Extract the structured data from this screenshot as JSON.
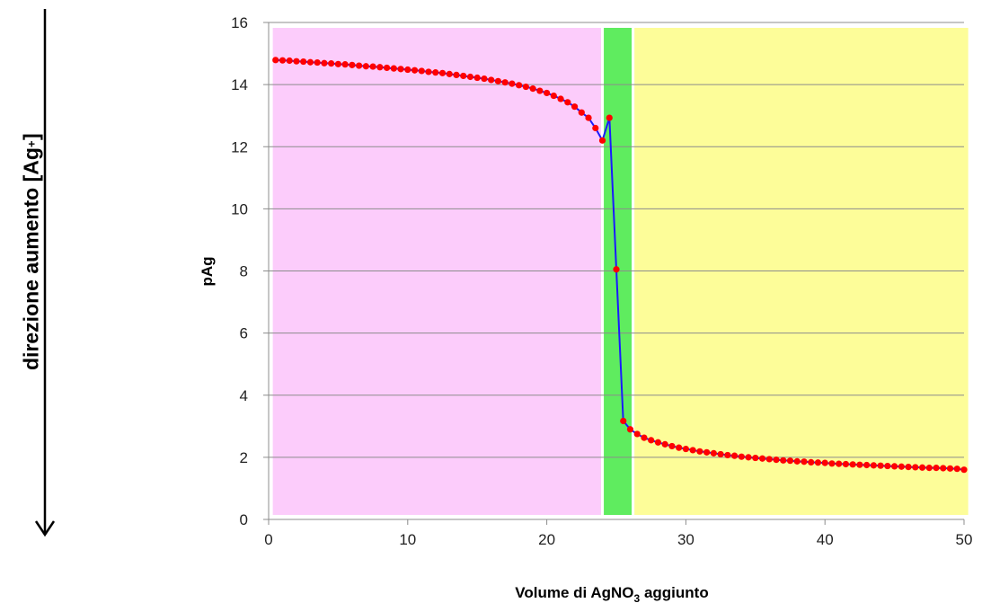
{
  "side_annotation": {
    "text": "direzione aumento [Ag",
    "superscript": "+",
    "close": "]"
  },
  "chart_data": {
    "type": "line",
    "title": "",
    "xlabel_parts": [
      "Volume di AgNO",
      "3",
      " aggiunto"
    ],
    "ylabel": "pAg",
    "xlim": [
      0,
      50
    ],
    "ylim": [
      0,
      16
    ],
    "x_ticks": [
      0,
      10,
      20,
      30,
      40,
      50
    ],
    "y_ticks": [
      0,
      2,
      4,
      6,
      8,
      10,
      12,
      14,
      16
    ],
    "grid": "horizontal",
    "line_color": "#1a1aff",
    "marker_color": "#ff0000",
    "regions": [
      {
        "x0": 0.3,
        "x1": 23.9,
        "color": "#fcccfb"
      },
      {
        "x0": 24.1,
        "x1": 26.1,
        "color": "#5fec5f"
      },
      {
        "x0": 26.3,
        "x1": 50.3,
        "color": "#fdfd99"
      }
    ],
    "series": [
      {
        "x": [
          0.5,
          1,
          1.5,
          2,
          2.5,
          3,
          3.5,
          4,
          4.5,
          5,
          5.5,
          6,
          6.5,
          7,
          7.5,
          8,
          8.5,
          9,
          9.5,
          10,
          10.5,
          11,
          11.5,
          12,
          12.5,
          13,
          13.5,
          14,
          14.5,
          15,
          15.5,
          16,
          16.5,
          17,
          17.5,
          18,
          18.5,
          19,
          19.5,
          20,
          20.5,
          21,
          21.5,
          22,
          22.5,
          23,
          23.5,
          24,
          24.5,
          25,
          25.5,
          26,
          26.5,
          27,
          27.5,
          28,
          28.5,
          29,
          29.5,
          30,
          30.5,
          31,
          31.5,
          32,
          32.5,
          33,
          33.5,
          34,
          34.5,
          35,
          35.5,
          36,
          36.5,
          37,
          37.5,
          38,
          38.5,
          39,
          39.5,
          40,
          40.5,
          41,
          41.5,
          42,
          42.5,
          43,
          43.5,
          44,
          44.5,
          45,
          45.5,
          46,
          46.5,
          47,
          47.5,
          48,
          48.5,
          49,
          49.5,
          50
        ],
        "y": [
          14.79,
          14.78,
          14.77,
          14.75,
          14.74,
          14.72,
          14.71,
          14.69,
          14.68,
          14.66,
          14.65,
          14.63,
          14.61,
          14.59,
          14.58,
          14.56,
          14.54,
          14.52,
          14.5,
          14.48,
          14.46,
          14.44,
          14.41,
          14.39,
          14.37,
          14.34,
          14.31,
          14.28,
          14.25,
          14.22,
          14.19,
          14.15,
          14.11,
          14.07,
          14.03,
          13.98,
          13.93,
          13.87,
          13.8,
          13.73,
          13.64,
          13.54,
          13.43,
          13.29,
          13.1,
          12.93,
          12.6,
          12.2,
          12.93,
          8.05,
          3.17,
          2.9,
          2.75,
          2.63,
          2.55,
          2.48,
          2.42,
          2.36,
          2.31,
          2.27,
          2.23,
          2.19,
          2.16,
          2.13,
          2.1,
          2.07,
          2.05,
          2.02,
          2.0,
          1.98,
          1.96,
          1.94,
          1.92,
          1.9,
          1.89,
          1.87,
          1.86,
          1.84,
          1.83,
          1.82,
          1.8,
          1.79,
          1.78,
          1.77,
          1.76,
          1.75,
          1.74,
          1.73,
          1.72,
          1.71,
          1.7,
          1.69,
          1.68,
          1.67,
          1.66,
          1.66,
          1.65,
          1.64,
          1.63,
          1.6
        ]
      }
    ]
  }
}
